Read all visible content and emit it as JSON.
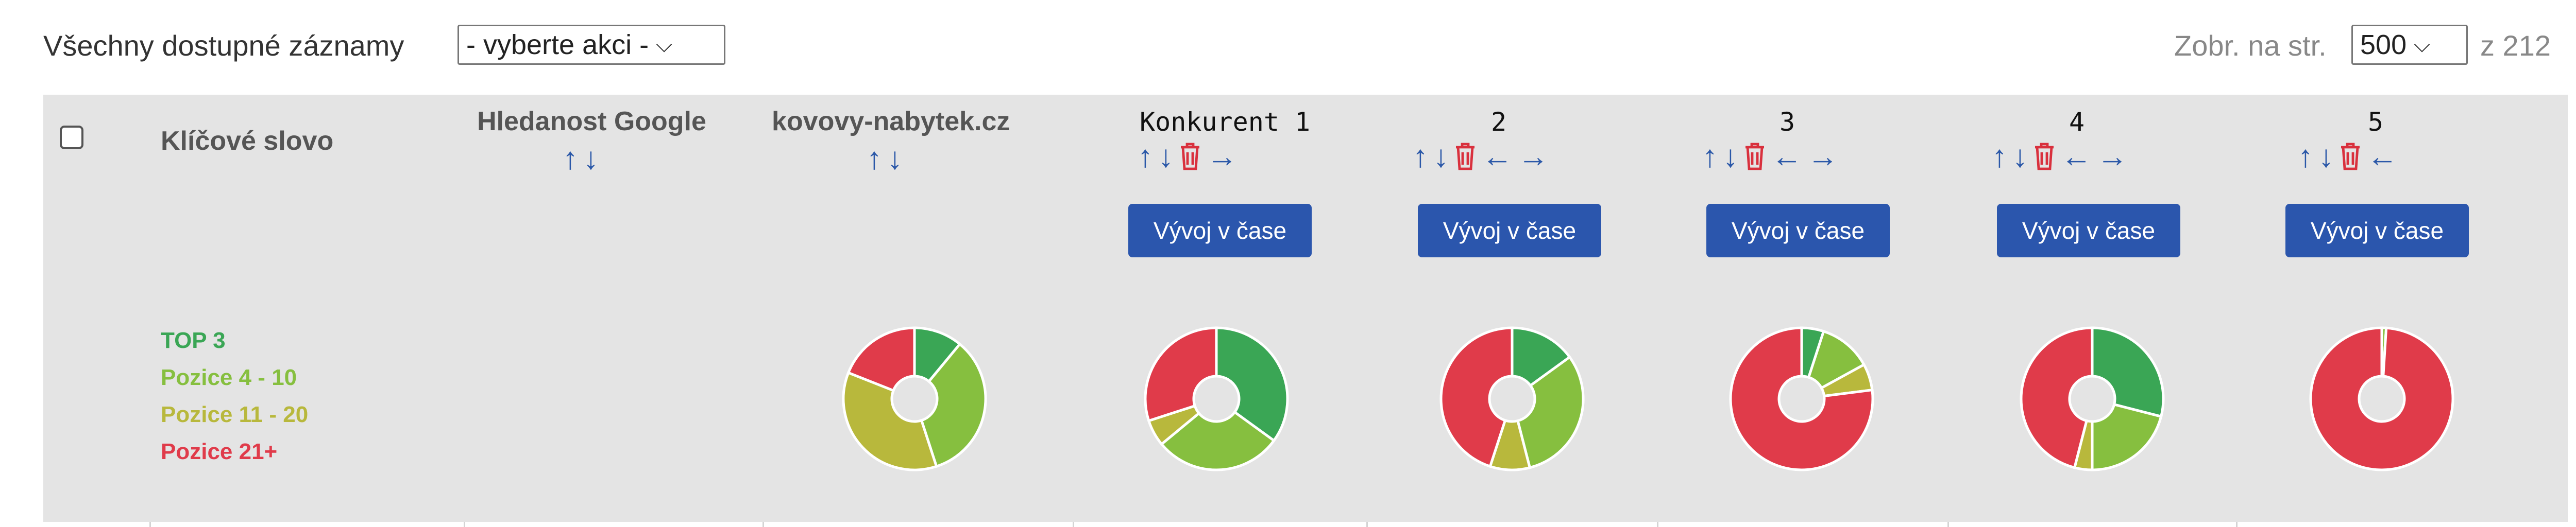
{
  "topbar": {
    "all_records_label": "Všechny dostupné záznamy",
    "action_select_value": "- vyberte akci -",
    "per_page_label": "Zobr. na str.",
    "per_page_value": "500",
    "of_total_label": "z 212"
  },
  "header": {
    "keyword": "Klíčové slovo",
    "search_volume": "Hledanost Google",
    "own_domain": "kovovy-nabytek.cz",
    "competitors": [
      "Konkurent 1",
      "2",
      "3",
      "4",
      "5"
    ]
  },
  "trend_button_label": "Vývoj v čase",
  "icons": {
    "sort_up": "↑",
    "sort_down": "↓",
    "move_left": "←",
    "move_right": "→"
  },
  "legend": [
    {
      "label": "TOP 3",
      "color": "#3aa655"
    },
    {
      "label": "Pozice 4 - 10",
      "color": "#86bf3f"
    },
    {
      "label": "Pozice 11 - 20",
      "color": "#b8b83c"
    },
    {
      "label": "Pozice 21+",
      "color": "#e03b4a"
    }
  ],
  "chart_data": [
    {
      "type": "pie",
      "column": "kovovy-nabytek.cz",
      "categories": [
        "TOP 3",
        "Pozice 4 - 10",
        "Pozice 11 - 20",
        "Pozice 21+"
      ],
      "values": [
        11,
        34,
        36,
        19
      ]
    },
    {
      "type": "pie",
      "column": "Konkurent 1",
      "categories": [
        "TOP 3",
        "Pozice 4 - 10",
        "Pozice 11 - 20",
        "Pozice 21+"
      ],
      "values": [
        35,
        29,
        6,
        30
      ]
    },
    {
      "type": "pie",
      "column": "2",
      "categories": [
        "TOP 3",
        "Pozice 4 - 10",
        "Pozice 11 - 20",
        "Pozice 21+"
      ],
      "values": [
        15,
        31,
        9,
        45
      ]
    },
    {
      "type": "pie",
      "column": "3",
      "categories": [
        "TOP 3",
        "Pozice 4 - 10",
        "Pozice 11 - 20",
        "Pozice 21+"
      ],
      "values": [
        5,
        12,
        6,
        77
      ]
    },
    {
      "type": "pie",
      "column": "4",
      "categories": [
        "TOP 3",
        "Pozice 4 - 10",
        "Pozice 11 - 20",
        "Pozice 21+"
      ],
      "values": [
        29,
        21,
        4,
        46
      ]
    },
    {
      "type": "pie",
      "column": "5",
      "categories": [
        "TOP 3",
        "Pozice 4 - 10",
        "Pozice 11 - 20",
        "Pozice 21+"
      ],
      "values": [
        0,
        1,
        0,
        99
      ]
    }
  ]
}
